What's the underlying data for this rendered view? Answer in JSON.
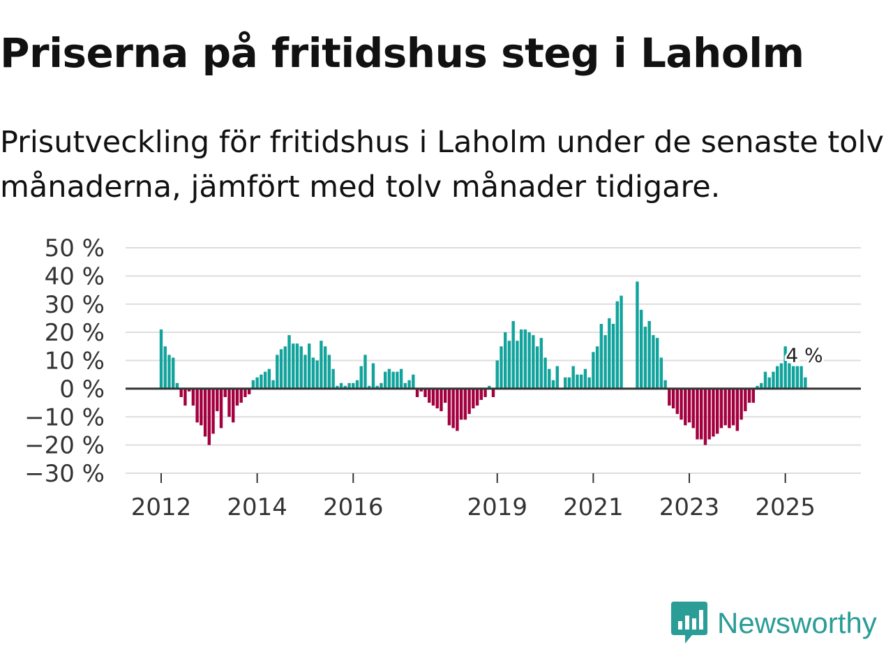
{
  "title": "Priserna på fritidshus steg i Laholm",
  "subtitle": "Prisutveckling för fritidshus i Laholm under de senaste tolv månaderna, jämfört med tolv månader tidigare.",
  "brand": {
    "name": "Newsworthy",
    "icon": "newsworthy-logo-icon",
    "color": "#2a9d96"
  },
  "colors": {
    "positive": "#12a39c",
    "negative": "#a3003f",
    "grid": "#dddddd",
    "zero": "#333333"
  },
  "chart_data": {
    "type": "bar",
    "title": "Priserna på fritidshus steg i Laholm",
    "xlabel": "",
    "ylabel": "",
    "ylim": [
      -30,
      50
    ],
    "y_ticks": [
      {
        "value": 50,
        "label": "50 %"
      },
      {
        "value": 40,
        "label": "40 %"
      },
      {
        "value": 30,
        "label": "30 %"
      },
      {
        "value": 20,
        "label": "20 %"
      },
      {
        "value": 10,
        "label": "10 %"
      },
      {
        "value": 0,
        "label": "0 %"
      },
      {
        "value": -10,
        "label": "−10 %"
      },
      {
        "value": -20,
        "label": "−20 %"
      },
      {
        "value": -30,
        "label": "−30 %"
      }
    ],
    "x_ticks": [
      {
        "year": 2012,
        "label": "2012"
      },
      {
        "year": 2014,
        "label": "2014"
      },
      {
        "year": 2016,
        "label": "2016"
      },
      {
        "year": 2019,
        "label": "2019"
      },
      {
        "year": 2021,
        "label": "2021"
      },
      {
        "year": 2023,
        "label": "2023"
      },
      {
        "year": 2025,
        "label": "2025"
      }
    ],
    "start": "2012-01",
    "frequency": "monthly",
    "values": [
      21,
      15,
      12,
      11,
      2,
      -3,
      -6,
      -1,
      -6,
      -12,
      -13,
      -17,
      -20,
      -16,
      -8,
      -14,
      -3,
      -10,
      -12,
      -6,
      -5,
      -3,
      -2,
      3,
      4,
      5,
      6,
      7,
      3,
      12,
      14,
      15,
      19,
      16,
      16,
      15,
      12,
      16,
      11,
      10,
      17,
      15,
      12,
      7,
      1,
      2,
      1,
      2,
      2,
      3,
      8,
      12,
      1,
      9,
      1,
      2,
      6,
      7,
      6,
      6,
      7,
      2,
      3,
      5,
      -3,
      -1,
      -3,
      -5,
      -6,
      -7,
      -8,
      -5,
      -13,
      -14,
      -15,
      -11,
      -11,
      -9,
      -7,
      -6,
      -4,
      -3,
      1,
      -3,
      10,
      15,
      20,
      17,
      24,
      17,
      21,
      21,
      20,
      19,
      15,
      18,
      11,
      7,
      3,
      8,
      0,
      4,
      4,
      8,
      5,
      5,
      7,
      4,
      13,
      15,
      23,
      19,
      25,
      23,
      31,
      33,
      null,
      null,
      null,
      38,
      28,
      22,
      24,
      19,
      18,
      11,
      3,
      -6,
      -7,
      -9,
      -11,
      -13,
      -12,
      -14,
      -18,
      -18,
      -20,
      -18,
      -17,
      -16,
      -14,
      -13,
      -14,
      -13,
      -15,
      -11,
      -8,
      -5,
      -5,
      1,
      2,
      6,
      4,
      6,
      8,
      9,
      15,
      9,
      8,
      8,
      8,
      4
    ],
    "annotation": {
      "label": "4 %",
      "value": 4,
      "position": "last"
    }
  }
}
